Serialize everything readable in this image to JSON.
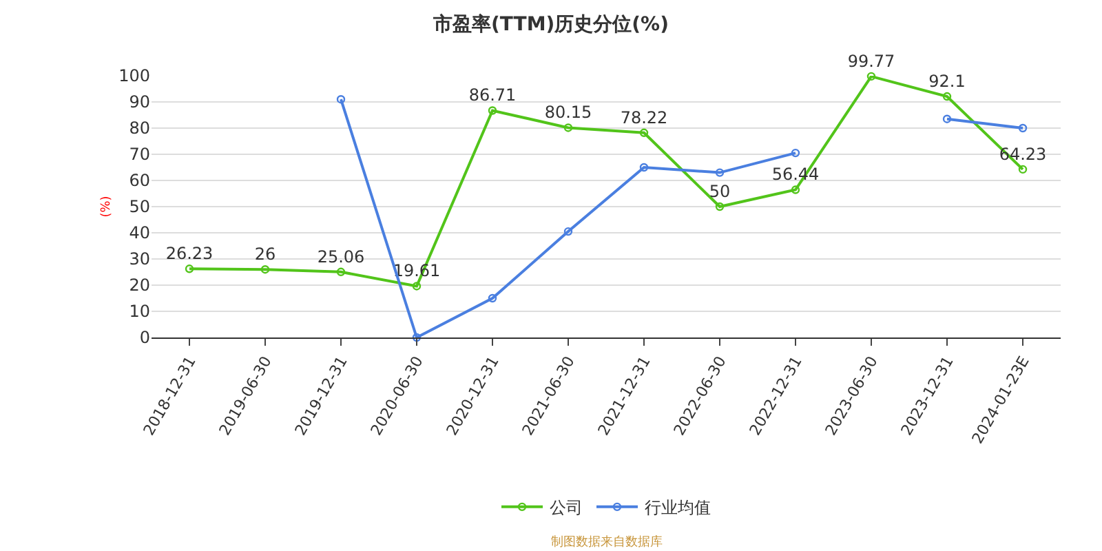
{
  "chart_data": {
    "type": "line",
    "title": "市盈率(TTM)历史分位(%)",
    "ylabel": "(%)",
    "categories": [
      "2018-12-31",
      "2019-06-30",
      "2019-12-31",
      "2020-06-30",
      "2020-12-31",
      "2021-06-30",
      "2021-12-31",
      "2022-06-30",
      "2022-12-31",
      "2023-06-30",
      "2023-12-31",
      "2024-01-23E"
    ],
    "series": [
      {
        "name": "公司",
        "color": "#52c41a",
        "values": [
          26.23,
          26,
          25.06,
          19.61,
          86.71,
          80.15,
          78.22,
          50,
          56.44,
          99.77,
          92.1,
          64.23
        ],
        "value_labels": [
          "26.23",
          "26",
          "25.06",
          "19.61",
          "86.71",
          "80.15",
          "78.22",
          "50",
          "56.44",
          "99.77",
          "92.1",
          "64.23"
        ]
      },
      {
        "name": "行业均值",
        "color": "#4a7fe0",
        "values": [
          null,
          null,
          91,
          0,
          15,
          40.5,
          65,
          63,
          70.5,
          null,
          83.5,
          80
        ]
      }
    ],
    "ylim": [
      0,
      100
    ],
    "yticks": [
      0,
      10,
      20,
      30,
      40,
      50,
      60,
      70,
      80,
      90,
      100
    ],
    "grid": "y",
    "legend": "bottom",
    "marker": "circle",
    "line_style": "solid",
    "annotations": [
      "制图数据来自数据库"
    ]
  }
}
